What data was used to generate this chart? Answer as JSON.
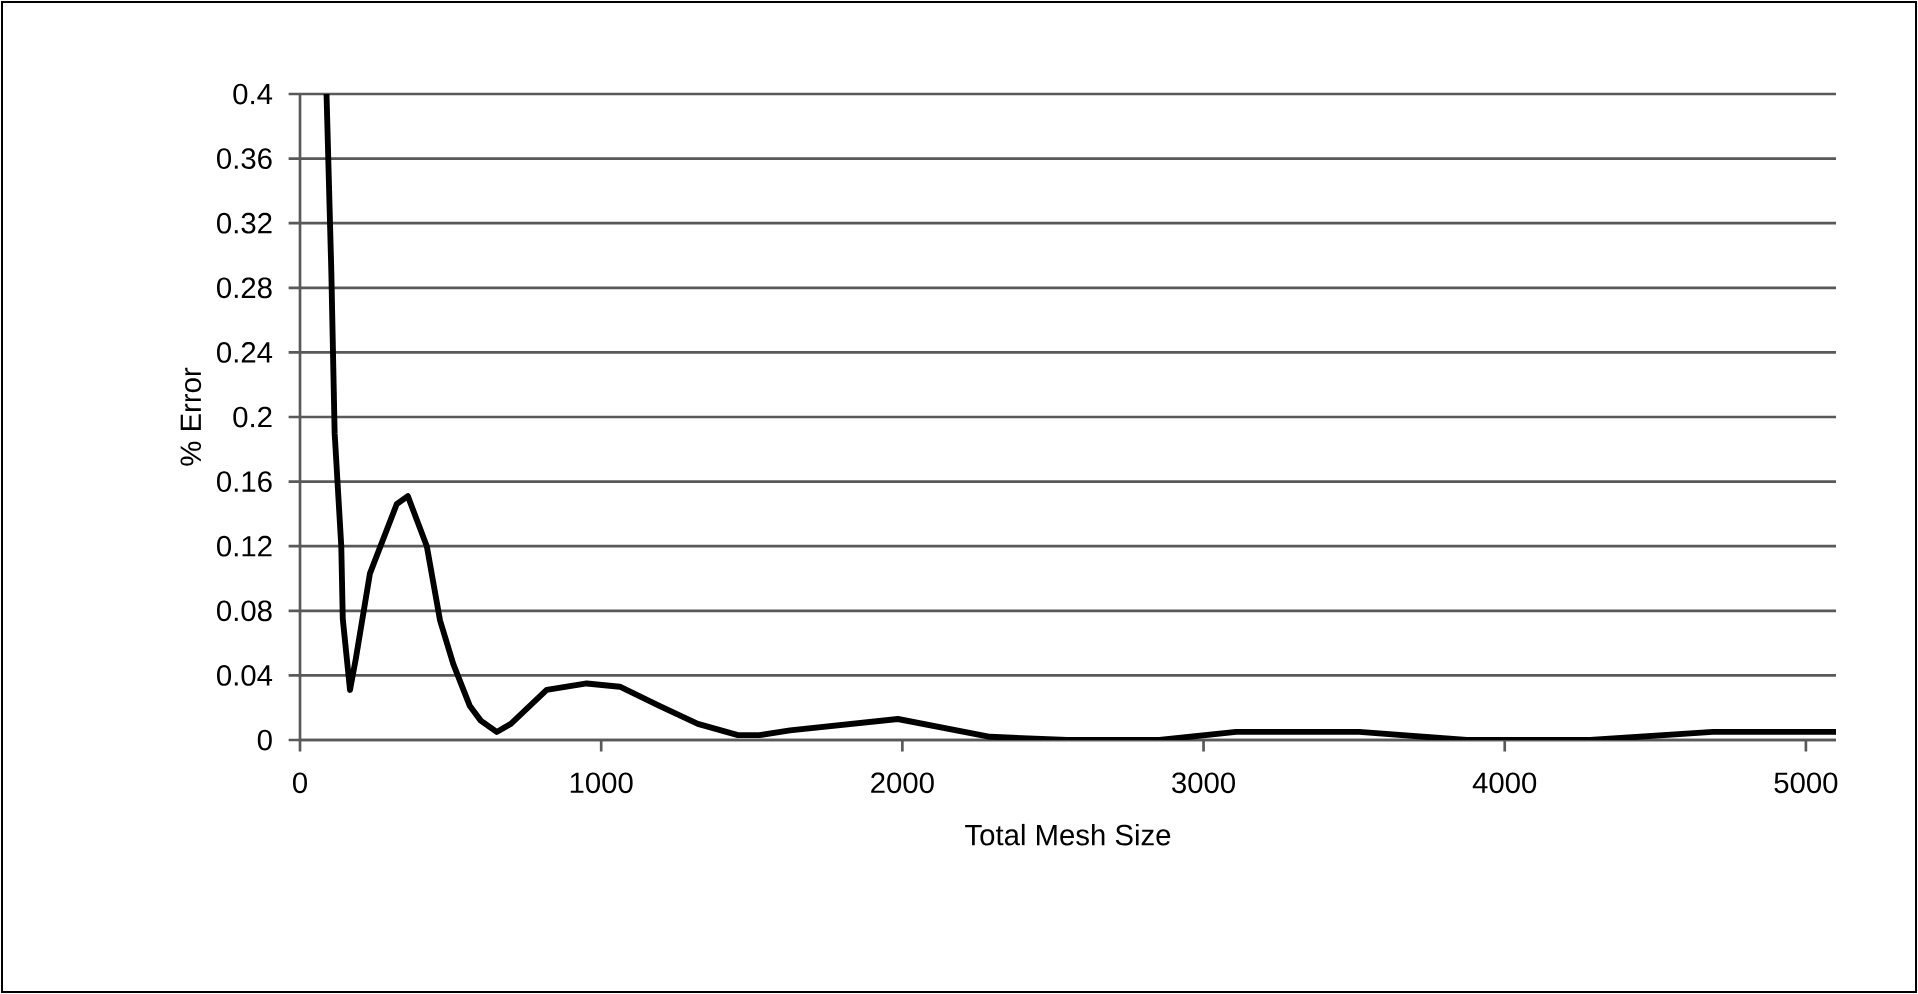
{
  "chart_data": {
    "type": "line",
    "xlabel": "Total Mesh Size",
    "ylabel": "% Error",
    "x": [
      88,
      104,
      115,
      137,
      142,
      166,
      185,
      232,
      321,
      358,
      421,
      465,
      509,
      564,
      600,
      653,
      700,
      819,
      952,
      1062,
      1195,
      1321,
      1454,
      1525,
      1627,
      1985,
      2291,
      2547,
      2853,
      3108,
      3517,
      3874,
      4283,
      4691,
      5100
    ],
    "series": [
      {
        "color": "#000000",
        "values": [
          0.4,
          0.29,
          0.19,
          0.12,
          0.075,
          0.031,
          0.05,
          0.103,
          0.146,
          0.151,
          0.12,
          0.074,
          0.047,
          0.021,
          0.012,
          0.005,
          0.01,
          0.031,
          0.035,
          0.033,
          0.021,
          0.01,
          0.003,
          0.003,
          0.006,
          0.013,
          0.002,
          0,
          0,
          0.005,
          0.005,
          0,
          0,
          0.005,
          0.005
        ]
      }
    ],
    "xlim": [
      0,
      5100
    ],
    "xticks": [
      0,
      1000,
      2000,
      3000,
      4000,
      5000
    ],
    "ylim": [
      0,
      0.4
    ],
    "yticks": [
      0,
      0.04,
      0.08,
      0.12,
      0.16,
      0.2,
      0.24,
      0.28,
      0.32,
      0.36,
      0.4
    ],
    "grid": "y",
    "marker": "none",
    "line_style": "solid"
  }
}
